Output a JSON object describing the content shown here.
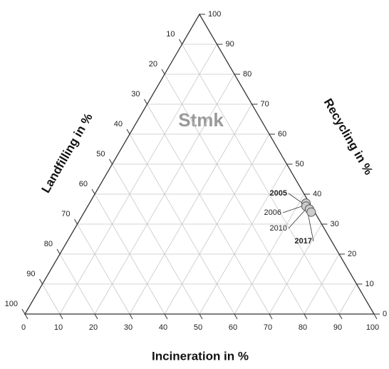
{
  "chart_data": {
    "type": "ternary",
    "title": "Stmk",
    "axes": {
      "bottom": {
        "label": "Incineration in %",
        "lim": [
          0,
          100
        ],
        "ticks": [
          0,
          10,
          20,
          30,
          40,
          50,
          60,
          70,
          80,
          90,
          100
        ]
      },
      "right": {
        "label": "Recycling in %",
        "lim": [
          0,
          100
        ],
        "ticks": [
          0,
          10,
          20,
          30,
          40,
          50,
          60,
          70,
          80,
          90,
          100
        ]
      },
      "left": {
        "label": "Landfilling in %",
        "lim": [
          0,
          100
        ],
        "ticks": [
          10,
          20,
          30,
          40,
          50,
          60,
          70,
          80,
          90,
          100
        ]
      }
    },
    "grid": true,
    "color": "#cccccc",
    "points": [
      {
        "name": "2005",
        "incineration": 62,
        "recycling": 37,
        "landfilling": 1,
        "bold": true
      },
      {
        "name": "2006",
        "incineration": 62.5,
        "recycling": 36,
        "landfilling": 1.5,
        "bold": false
      },
      {
        "name": "2010",
        "incineration": 64,
        "recycling": 35,
        "landfilling": 1,
        "bold": false
      },
      {
        "name": "2017",
        "incineration": 65,
        "recycling": 34,
        "landfilling": 1,
        "bold": true
      }
    ]
  }
}
